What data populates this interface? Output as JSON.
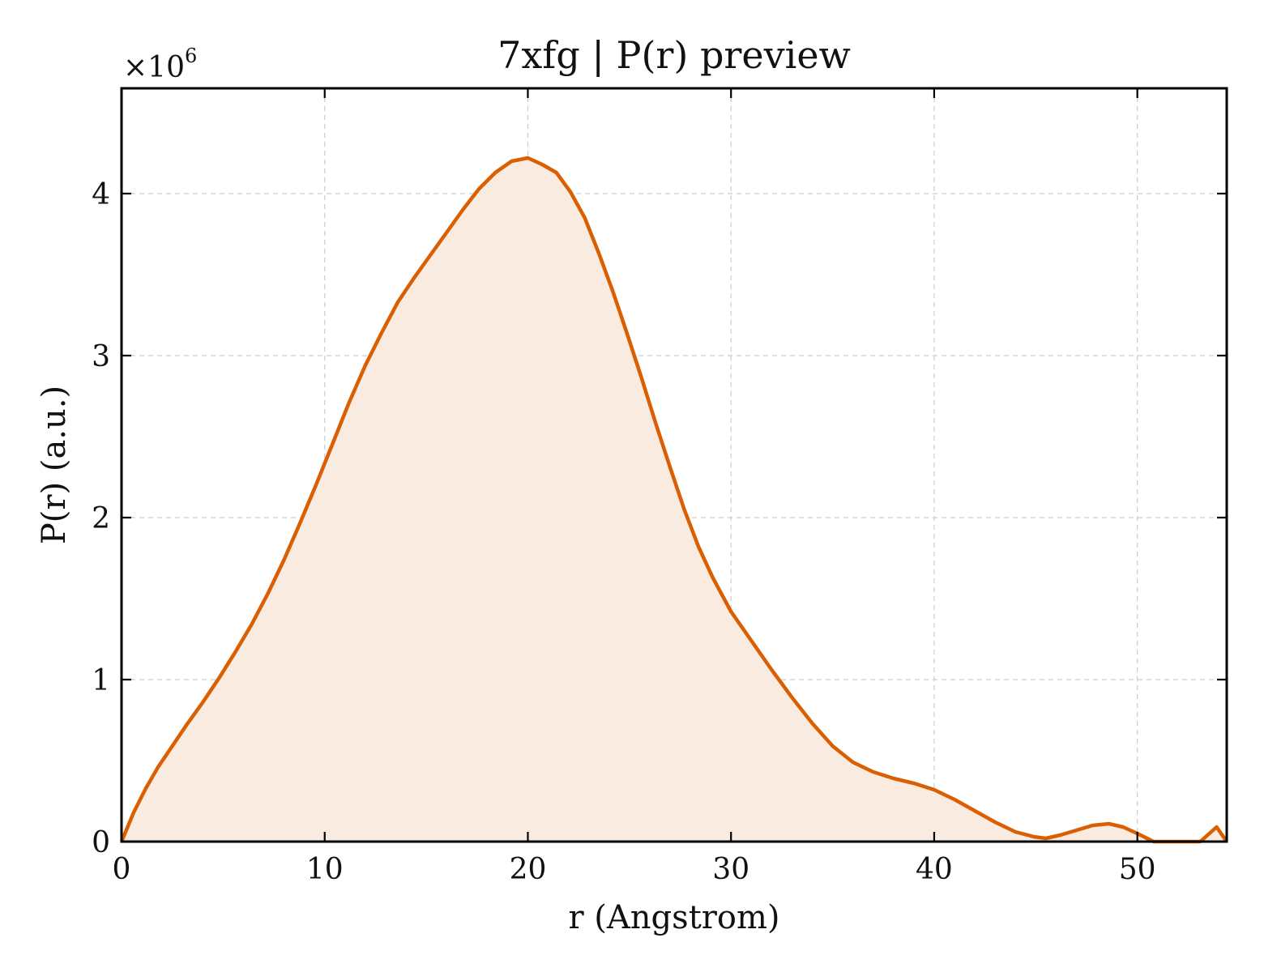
{
  "chart_data": {
    "type": "area",
    "title": "7xfg | P(r) preview",
    "xlabel": "r (Angstrom)",
    "ylabel": "P(r) (a.u.)",
    "y_multiplier": {
      "base": "×10",
      "exponent": "6"
    },
    "xlim": [
      0,
      54.4
    ],
    "ylim": [
      0,
      4.65
    ],
    "xticks": [
      0,
      10,
      20,
      30,
      40,
      50
    ],
    "yticks": [
      0,
      1,
      2,
      3,
      4
    ],
    "grid": true,
    "line_color": "#d95f02",
    "fill_color": "#f9ebe0",
    "series": [
      {
        "x": [
          0,
          0.6,
          1.2,
          1.8,
          2.5,
          3.2,
          4.0,
          4.8,
          5.6,
          6.4,
          7.2,
          8.0,
          8.8,
          9.6,
          10.4,
          11.2,
          12.0,
          12.8,
          13.6,
          14.4,
          15.2,
          16.0,
          16.8,
          17.6,
          18.4,
          19.2,
          20.0,
          20.7,
          21.4,
          22.1,
          22.8,
          23.5,
          24.2,
          24.9,
          25.6,
          26.3,
          27.0,
          27.7,
          28.4,
          29.1,
          30.0,
          31.0,
          32.0,
          33.0,
          34.0,
          35.0,
          36.0,
          37.0,
          38.0,
          39.0,
          40.0,
          41.0,
          42.0,
          43.0,
          44.0,
          44.9,
          45.5,
          46.2,
          47.0,
          47.8,
          48.6,
          49.3,
          50.0,
          50.8,
          51.5,
          52.3,
          53.1,
          53.9,
          54.4
        ],
        "y": [
          0,
          0.18,
          0.33,
          0.46,
          0.59,
          0.72,
          0.86,
          1.01,
          1.17,
          1.34,
          1.53,
          1.74,
          1.97,
          2.21,
          2.46,
          2.71,
          2.94,
          3.14,
          3.33,
          3.48,
          3.62,
          3.76,
          3.9,
          4.03,
          4.13,
          4.2,
          4.22,
          4.18,
          4.13,
          4.01,
          3.85,
          3.63,
          3.39,
          3.13,
          2.86,
          2.58,
          2.31,
          2.05,
          1.82,
          1.63,
          1.42,
          1.24,
          1.06,
          0.89,
          0.73,
          0.59,
          0.49,
          0.43,
          0.39,
          0.36,
          0.32,
          0.26,
          0.19,
          0.12,
          0.06,
          0.03,
          0.02,
          0.04,
          0.07,
          0.1,
          0.11,
          0.09,
          0.05,
          0,
          0,
          0,
          0,
          0.09,
          0
        ]
      }
    ]
  }
}
